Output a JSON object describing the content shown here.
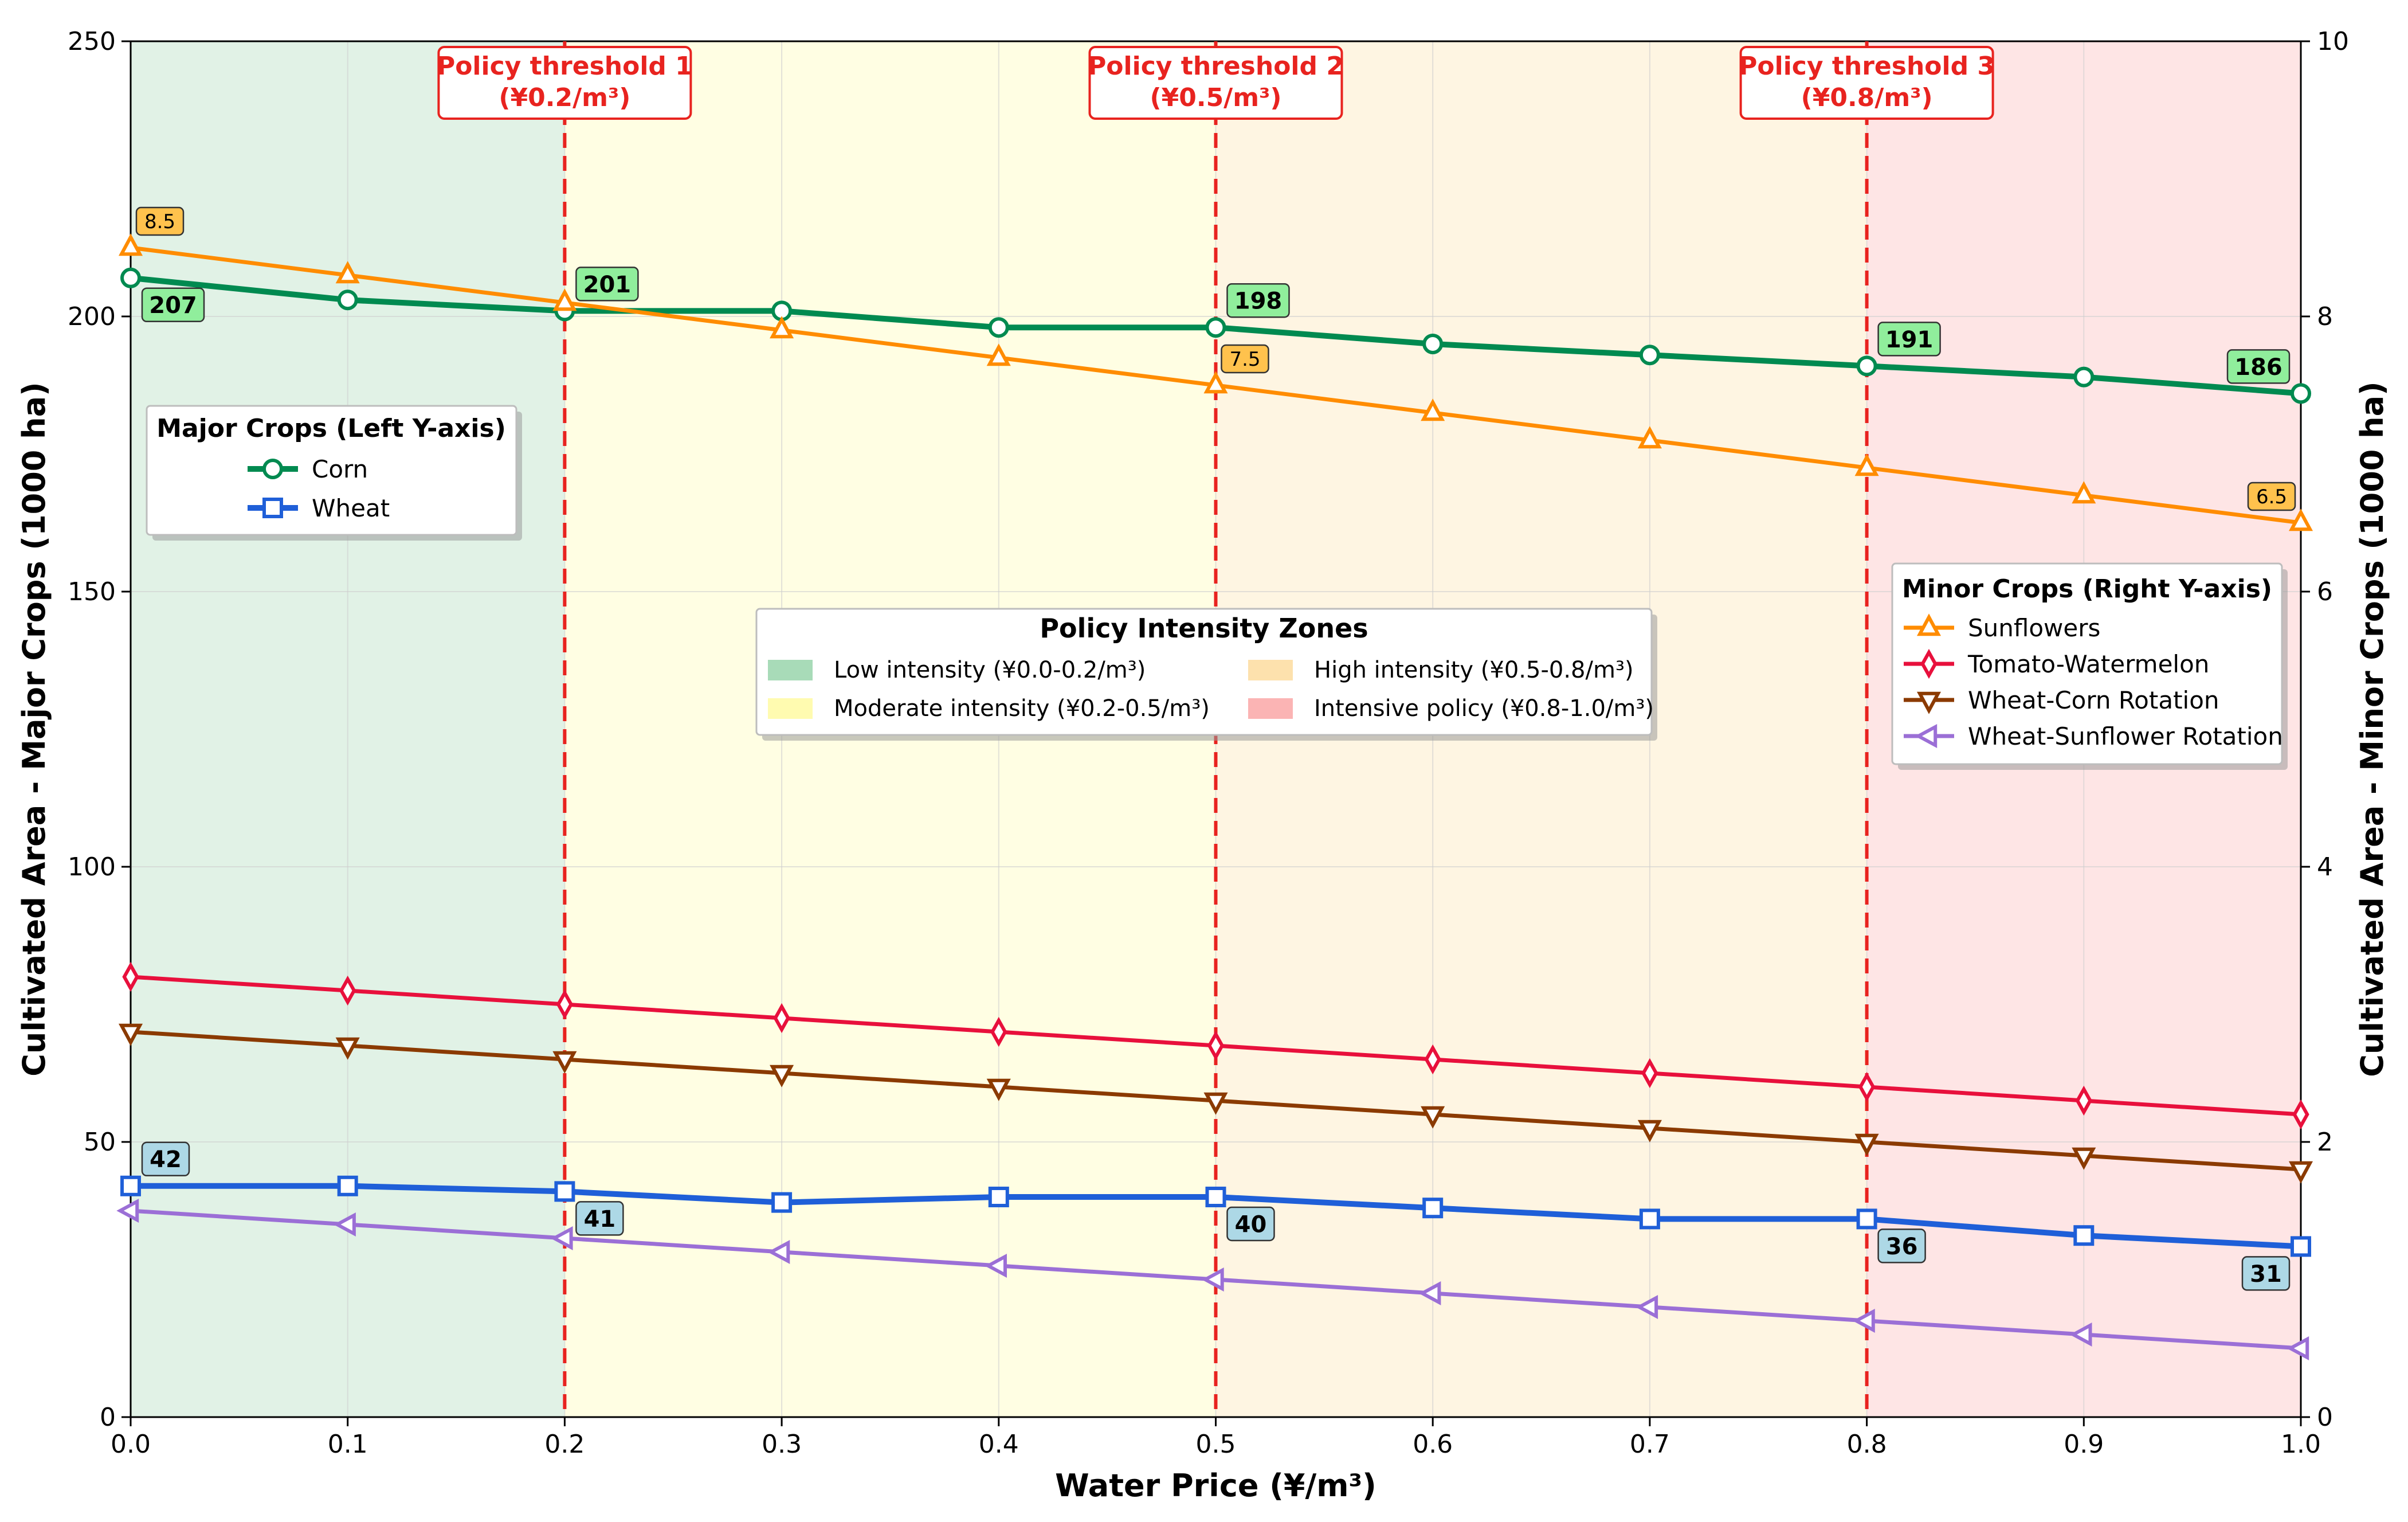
{
  "chart_data": {
    "type": "line",
    "title": "",
    "xlabel": "Water Price (¥/m³)",
    "ylabel_left": "Cultivated Area - Major Crops (1000 ha)",
    "ylabel_right": "Cultivated Area - Minor Crops (1000 ha)",
    "xlim": [
      0,
      1.0
    ],
    "ylim_left": [
      0,
      250
    ],
    "ylim_right": [
      0,
      10
    ],
    "grid": true,
    "x": [
      0.0,
      0.1,
      0.2,
      0.3,
      0.4,
      0.5,
      0.6,
      0.7,
      0.8,
      0.9,
      1.0
    ],
    "x_tick_labels": [
      "0.0",
      "0.1",
      "0.2",
      "0.3",
      "0.4",
      "0.5",
      "0.6",
      "0.7",
      "0.8",
      "0.9",
      "1.0"
    ],
    "y_left_ticks": [
      0,
      50,
      100,
      150,
      200,
      250
    ],
    "y_right_ticks": [
      0,
      2,
      4,
      6,
      8,
      10
    ],
    "zones": [
      {
        "label": "Low intensity (¥0.0-0.2/m³)",
        "from": 0.0,
        "to": 0.2,
        "color": "#a8dbb8"
      },
      {
        "label": "Moderate intensity (¥0.2-0.5/m³)",
        "from": 0.2,
        "to": 0.5,
        "color": "#fffbb0"
      },
      {
        "label": "High intensity (¥0.5-0.8/m³)",
        "from": 0.5,
        "to": 0.8,
        "color": "#fde1ad"
      },
      {
        "label": "Intensive policy (¥0.8-1.0/m³)",
        "from": 0.8,
        "to": 1.0,
        "color": "#fbb4b4"
      }
    ],
    "thresholds": [
      {
        "x": 0.2,
        "line1": "Policy threshold 1",
        "line2": "(¥0.2/m³)"
      },
      {
        "x": 0.5,
        "line1": "Policy threshold 2",
        "line2": "(¥0.5/m³)"
      },
      {
        "x": 0.8,
        "line1": "Policy threshold 3",
        "line2": "(¥0.8/m³)"
      }
    ],
    "series": [
      {
        "name": "Corn",
        "axis": "left",
        "color": "#008a50",
        "marker": "circle",
        "values": [
          207,
          203,
          201,
          201,
          198,
          198,
          195,
          193,
          191,
          189,
          186
        ]
      },
      {
        "name": "Wheat",
        "axis": "left",
        "color": "#1f5fd8",
        "marker": "square",
        "values": [
          42,
          42,
          41,
          39,
          40,
          40,
          38,
          36,
          36,
          33,
          31
        ]
      },
      {
        "name": "Sunflowers",
        "axis": "right",
        "color": "#ff8c00",
        "marker": "triangle-up",
        "values": [
          8.5,
          8.3,
          8.1,
          7.9,
          7.7,
          7.5,
          7.3,
          7.1,
          6.9,
          6.7,
          6.5
        ]
      },
      {
        "name": "Tomato-Watermelon",
        "axis": "right",
        "color": "#e8103c",
        "marker": "diamond",
        "values": [
          3.2,
          3.1,
          3.0,
          2.9,
          2.8,
          2.7,
          2.6,
          2.5,
          2.4,
          2.3,
          2.2
        ]
      },
      {
        "name": "Wheat-Corn Rotation",
        "axis": "right",
        "color": "#8b3a00",
        "marker": "triangle-down",
        "values": [
          2.8,
          2.7,
          2.6,
          2.5,
          2.4,
          2.3,
          2.2,
          2.1,
          2.0,
          1.9,
          1.8
        ]
      },
      {
        "name": "Wheat-Sunflower Rotation",
        "axis": "right",
        "color": "#9b6fd6",
        "marker": "triangle-left",
        "values": [
          1.5,
          1.4,
          1.3,
          1.2,
          1.1,
          1.0,
          0.9,
          0.8,
          0.7,
          0.6,
          0.5
        ]
      }
    ],
    "data_labels": [
      {
        "series": "Corn",
        "x": 0.0,
        "text": "207",
        "pos": "below-right"
      },
      {
        "series": "Corn",
        "x": 0.2,
        "text": "201",
        "pos": "above-right"
      },
      {
        "series": "Corn",
        "x": 0.5,
        "text": "198",
        "pos": "above-right"
      },
      {
        "series": "Corn",
        "x": 0.8,
        "text": "191",
        "pos": "above-right"
      },
      {
        "series": "Corn",
        "x": 1.0,
        "text": "186",
        "pos": "above-left"
      },
      {
        "series": "Wheat",
        "x": 0.0,
        "text": "42",
        "pos": "above-right"
      },
      {
        "series": "Wheat",
        "x": 0.2,
        "text": "41",
        "pos": "below-right"
      },
      {
        "series": "Wheat",
        "x": 0.5,
        "text": "40",
        "pos": "below-right"
      },
      {
        "series": "Wheat",
        "x": 0.8,
        "text": "36",
        "pos": "below-right"
      },
      {
        "series": "Wheat",
        "x": 1.0,
        "text": "31",
        "pos": "below-left"
      },
      {
        "series": "Sunflowers",
        "x": 0.0,
        "text": "8.5",
        "pos": "above-right"
      },
      {
        "series": "Sunflowers",
        "x": 0.5,
        "text": "7.5",
        "pos": "above-right"
      },
      {
        "series": "Sunflowers",
        "x": 1.0,
        "text": "6.5",
        "pos": "above-left"
      }
    ],
    "legend_major": {
      "title": "Major Crops (Left Y-axis)",
      "items": [
        "Corn",
        "Wheat"
      ],
      "placement": "upper-left"
    },
    "legend_minor": {
      "title": "Minor Crops (Right Y-axis)",
      "items": [
        "Sunflowers",
        "Tomato-Watermelon",
        "Wheat-Corn Rotation",
        "Wheat-Sunflower Rotation"
      ],
      "placement": "right"
    },
    "legend_zones": {
      "title": "Policy Intensity Zones",
      "placement": "center"
    }
  }
}
